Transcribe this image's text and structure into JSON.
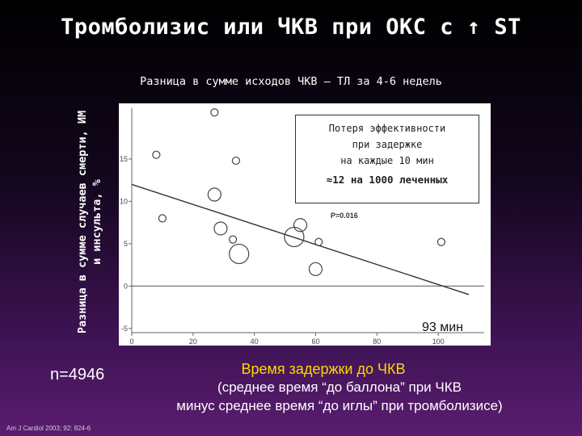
{
  "slide": {
    "title": "Тромболизис или ЧКВ при ОКС с ↑ ST",
    "n_label": "n=4946",
    "reference": "Am J Cardiol 2003; 92: 824-6"
  },
  "annotation": {
    "line1": "Потеря эффективности",
    "line2": "при задержке",
    "line3": "на каждые 10 мин",
    "bold": "≈12 на 1000 леченных",
    "pvalue": "P=0.016",
    "breakpoint": "93 мин"
  },
  "xaxis_text": {
    "title": "Время задержки до ЧКВ",
    "sub1": "(среднее время “до баллона” при ЧКВ",
    "sub2": "минус среднее время “до иглы” при тромболизисе)"
  },
  "chart_data": {
    "type": "scatter",
    "title": "Разница в сумме исходов ЧКВ – ТЛ за 4-6 недель",
    "ylabel": "Разница в сумме случаев смерти, ИМ и инсульта, %",
    "xlim": [
      0,
      115
    ],
    "ylim": [
      -5.5,
      21
    ],
    "xticks": [
      0,
      20,
      40,
      60,
      80,
      100
    ],
    "yticks": [
      -5,
      0,
      5,
      10,
      15
    ],
    "grid": false,
    "points": [
      {
        "x": 8,
        "y": 15.5,
        "size": "small"
      },
      {
        "x": 10,
        "y": 8,
        "size": "small"
      },
      {
        "x": 27,
        "y": 20.5,
        "size": "small"
      },
      {
        "x": 27,
        "y": 10.8,
        "size": "medium"
      },
      {
        "x": 29,
        "y": 6.8,
        "size": "medium"
      },
      {
        "x": 34,
        "y": 14.8,
        "size": "small"
      },
      {
        "x": 33,
        "y": 5.5,
        "size": "small"
      },
      {
        "x": 35,
        "y": 3.8,
        "size": "large"
      },
      {
        "x": 53,
        "y": 5.8,
        "size": "large"
      },
      {
        "x": 55,
        "y": 7.2,
        "size": "medium"
      },
      {
        "x": 60,
        "y": 2.0,
        "size": "medium"
      },
      {
        "x": 61,
        "y": 5.2,
        "size": "small"
      },
      {
        "x": 101,
        "y": 5.2,
        "size": "small"
      }
    ],
    "hline": 0,
    "trend": [
      {
        "x": 0,
        "y": 12.0
      },
      {
        "x": 110,
        "y": -1.0
      }
    ]
  }
}
